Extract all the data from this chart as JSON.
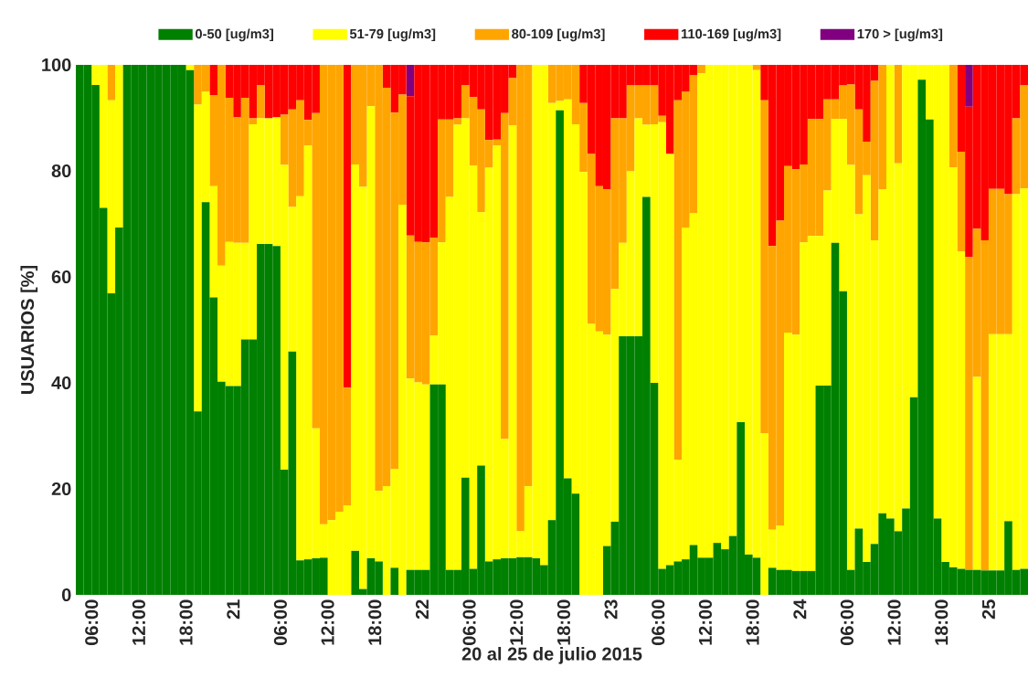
{
  "chart_data": {
    "type": "bar",
    "stacked": true,
    "legend": "top",
    "xlabel": "20 al 25 de julio 2015",
    "ylabel": "USUARIOS [%]",
    "ylim": [
      0,
      100
    ],
    "yticks": [
      0,
      20,
      40,
      60,
      80,
      100
    ],
    "xlim": [
      "2015-07-20T04:00",
      "2015-07-25T05:00"
    ],
    "xticks": [
      {
        "value": "2015-07-20T06:00",
        "label": "06:00"
      },
      {
        "value": "2015-07-20T12:00",
        "label": "12:00"
      },
      {
        "value": "2015-07-20T18:00",
        "label": "18:00"
      },
      {
        "value": "2015-07-21T00:00",
        "label": "21"
      },
      {
        "value": "2015-07-21T06:00",
        "label": "06:00"
      },
      {
        "value": "2015-07-21T12:00",
        "label": "12:00"
      },
      {
        "value": "2015-07-21T18:00",
        "label": "18:00"
      },
      {
        "value": "2015-07-22T00:00",
        "label": "22"
      },
      {
        "value": "2015-07-22T06:00",
        "label": "06:00"
      },
      {
        "value": "2015-07-22T12:00",
        "label": "12:00"
      },
      {
        "value": "2015-07-22T18:00",
        "label": "18:00"
      },
      {
        "value": "2015-07-23T00:00",
        "label": "23"
      },
      {
        "value": "2015-07-23T06:00",
        "label": "06:00"
      },
      {
        "value": "2015-07-23T12:00",
        "label": "12:00"
      },
      {
        "value": "2015-07-23T18:00",
        "label": "18:00"
      },
      {
        "value": "2015-07-24T00:00",
        "label": "24"
      },
      {
        "value": "2015-07-24T06:00",
        "label": "06:00"
      },
      {
        "value": "2015-07-24T12:00",
        "label": "12:00"
      },
      {
        "value": "2015-07-24T18:00",
        "label": "18:00"
      },
      {
        "value": "2015-07-25T00:00",
        "label": "25"
      }
    ],
    "x": [
      "2015-07-20T04:00",
      "2015-07-20T05:00",
      "2015-07-20T06:00",
      "2015-07-20T07:00",
      "2015-07-20T08:00",
      "2015-07-20T09:00",
      "2015-07-20T10:00",
      "2015-07-20T11:00",
      "2015-07-20T12:00",
      "2015-07-20T13:00",
      "2015-07-20T14:00",
      "2015-07-20T15:00",
      "2015-07-20T16:00",
      "2015-07-20T17:00",
      "2015-07-20T18:00",
      "2015-07-20T19:00",
      "2015-07-20T20:00",
      "2015-07-20T21:00",
      "2015-07-20T22:00",
      "2015-07-20T23:00",
      "2015-07-21T00:00",
      "2015-07-21T01:00",
      "2015-07-21T02:00",
      "2015-07-21T03:00",
      "2015-07-21T04:00",
      "2015-07-21T05:00",
      "2015-07-21T06:00",
      "2015-07-21T07:00",
      "2015-07-21T08:00",
      "2015-07-21T09:00",
      "2015-07-21T10:00",
      "2015-07-21T11:00",
      "2015-07-21T12:00",
      "2015-07-21T13:00",
      "2015-07-21T14:00",
      "2015-07-21T15:00",
      "2015-07-21T16:00",
      "2015-07-21T17:00",
      "2015-07-21T18:00",
      "2015-07-21T19:00",
      "2015-07-21T20:00",
      "2015-07-21T21:00",
      "2015-07-21T22:00",
      "2015-07-21T23:00",
      "2015-07-22T00:00",
      "2015-07-22T01:00",
      "2015-07-22T02:00",
      "2015-07-22T03:00",
      "2015-07-22T04:00",
      "2015-07-22T05:00",
      "2015-07-22T06:00",
      "2015-07-22T07:00",
      "2015-07-22T08:00",
      "2015-07-22T09:00",
      "2015-07-22T10:00",
      "2015-07-22T11:00",
      "2015-07-22T12:00",
      "2015-07-22T13:00",
      "2015-07-22T14:00",
      "2015-07-22T15:00",
      "2015-07-22T16:00",
      "2015-07-22T17:00",
      "2015-07-22T18:00",
      "2015-07-22T19:00",
      "2015-07-22T20:00",
      "2015-07-22T21:00",
      "2015-07-22T22:00",
      "2015-07-22T23:00",
      "2015-07-23T00:00",
      "2015-07-23T01:00",
      "2015-07-23T02:00",
      "2015-07-23T03:00",
      "2015-07-23T04:00",
      "2015-07-23T05:00",
      "2015-07-23T06:00",
      "2015-07-23T07:00",
      "2015-07-23T08:00",
      "2015-07-23T09:00",
      "2015-07-23T10:00",
      "2015-07-23T11:00",
      "2015-07-23T12:00",
      "2015-07-23T13:00",
      "2015-07-23T14:00",
      "2015-07-23T15:00",
      "2015-07-23T16:00",
      "2015-07-23T17:00",
      "2015-07-23T18:00",
      "2015-07-23T19:00",
      "2015-07-23T20:00",
      "2015-07-23T21:00",
      "2015-07-23T22:00",
      "2015-07-23T23:00",
      "2015-07-24T00:00",
      "2015-07-24T01:00",
      "2015-07-24T02:00",
      "2015-07-24T03:00",
      "2015-07-24T04:00",
      "2015-07-24T05:00",
      "2015-07-24T06:00",
      "2015-07-24T07:00",
      "2015-07-24T08:00",
      "2015-07-24T09:00",
      "2015-07-24T10:00",
      "2015-07-24T11:00",
      "2015-07-24T12:00",
      "2015-07-24T13:00",
      "2015-07-24T14:00",
      "2015-07-24T15:00",
      "2015-07-24T16:00",
      "2015-07-24T17:00",
      "2015-07-24T18:00",
      "2015-07-24T19:00",
      "2015-07-24T20:00",
      "2015-07-24T21:00",
      "2015-07-24T22:00",
      "2015-07-24T23:00",
      "2015-07-25T00:00",
      "2015-07-25T01:00",
      "2015-07-25T02:00",
      "2015-07-25T03:00",
      "2015-07-25T04:00"
    ],
    "series": [
      {
        "name": "0-50 [ug/m3]",
        "color": "#008000",
        "values": [
          100,
          100,
          96.2,
          73.0,
          56.9,
          69.3,
          100,
          100,
          100,
          100,
          100,
          100,
          100,
          100,
          99.0,
          34.6,
          74.1,
          56.1,
          40.2,
          39.4,
          39.4,
          48.2,
          48.2,
          66.2,
          66.2,
          65.8,
          23.6,
          45.9,
          6.5,
          6.7,
          6.9,
          7.0,
          0,
          0,
          0,
          8.3,
          1.1,
          6.9,
          6.3,
          0,
          5.1,
          0,
          4.7,
          4.7,
          4.7,
          39.7,
          39.7,
          4.7,
          4.7,
          22.1,
          4.9,
          24.4,
          6.3,
          6.7,
          6.9,
          6.9,
          7.1,
          7.1,
          6.9,
          5.6,
          14.1,
          91.4,
          22.0,
          19.1,
          0,
          0,
          0,
          9.2,
          13.8,
          48.8,
          48.8,
          48.8,
          75.1,
          40.0,
          4.9,
          5.6,
          6.3,
          6.7,
          9.4,
          7.0,
          7.0,
          9.8,
          8.6,
          11.1,
          32.6,
          7.6,
          7.0,
          0,
          5.1,
          4.7,
          4.7,
          4.5,
          4.5,
          4.5,
          39.5,
          39.5,
          66.4,
          57.3,
          4.7,
          12.5,
          6.2,
          9.6,
          15.4,
          14.4,
          12.0,
          16.3,
          37.3,
          97.2,
          89.7,
          14.4,
          6.2,
          5.2,
          4.9,
          4.7,
          4.7,
          4.6,
          4.6,
          4.6,
          13.9,
          4.7,
          4.9
        ]
      },
      {
        "name": "51-79 [ug/m3]",
        "color": "#ffff00",
        "values": [
          0,
          0,
          3.8,
          27.0,
          36.4,
          30.7,
          0,
          0,
          0,
          0,
          0,
          0,
          0,
          0,
          1.0,
          57.9,
          20.8,
          21.0,
          21.9,
          27.2,
          27.0,
          18.2,
          40.6,
          23.7,
          23.7,
          24.3,
          57.5,
          27.3,
          68.7,
          78.1,
          24.5,
          6.3,
          14.1,
          15.7,
          16.9,
          72.9,
          75.9,
          85.3,
          13.3,
          20.5,
          18.6,
          73.6,
          36.1,
          35.4,
          35.0,
          9.2,
          26.8,
          70.4,
          84.0,
          67.8,
          76.1,
          47.8,
          74.3,
          78.1,
          22.5,
          81.7,
          4.9,
          13.4,
          93.1,
          94.4,
          78.7,
          1.8,
          71.5,
          69.7,
          79.8,
          51.1,
          49.7,
          39.9,
          43.9,
          17.6,
          31.1,
          41.1,
          13.6,
          48.8,
          84.3,
          77.6,
          19.2,
          62.6,
          62.6,
          91.4,
          93.0,
          90.2,
          91.4,
          88.9,
          67.4,
          92.4,
          92.0,
          30.5,
          7.2,
          8.4,
          44.8,
          44.6,
          62.0,
          63.2,
          28.2,
          36.8,
          23.4,
          32.5,
          76.4,
          59.3,
          73.0,
          57.3,
          61.1,
          85.6,
          69.4,
          83.7,
          62.7,
          2.8,
          10.3,
          85.6,
          93.8,
          75.5,
          59.9,
          0,
          36.4,
          0,
          44.6,
          44.6,
          35.3,
          70.9,
          71.8
        ]
      },
      {
        "name": "80-109 [ug/m3]",
        "color": "#ffa500",
        "values": [
          0,
          0,
          0,
          0,
          6.7,
          0,
          0,
          0,
          0,
          0,
          0,
          0,
          0,
          0,
          0,
          7.5,
          5.1,
          17.2,
          37.9,
          27.2,
          23.7,
          27.4,
          1.1,
          6.3,
          0,
          0,
          9.5,
          18.4,
          18.1,
          4.8,
          59.5,
          86.7,
          85.9,
          84.3,
          22.2,
          18.8,
          23.0,
          7.8,
          80.4,
          75.2,
          67.3,
          20.8,
          27.0,
          26.5,
          26.8,
          18.5,
          23.2,
          14.6,
          1.2,
          6.3,
          12.9,
          19.4,
          5.2,
          1.1,
          61.5,
          8.9,
          88.0,
          79.5,
          0,
          0,
          7.2,
          6.8,
          6.5,
          11.2,
          13.0,
          32.1,
          27.4,
          27.4,
          32.2,
          23.5,
          16.2,
          6.2,
          7.4,
          7.3,
          1.2,
          0,
          67.8,
          25.6,
          26.1,
          1.6,
          0,
          0,
          0,
          0,
          0,
          0,
          1.0,
          62.8,
          53.5,
          57.5,
          31.4,
          31.2,
          14.7,
          22.1,
          22.1,
          17.2,
          3.7,
          6.3,
          15.2,
          19.8,
          6.3,
          30.1,
          23.5,
          0,
          18.6,
          0,
          0,
          0,
          0,
          0,
          0,
          19.3,
          18.8,
          59.0,
          28.0,
          62.3,
          27.4,
          27.4,
          26.4,
          14.3,
          19.5
        ]
      },
      {
        "name": "110-169 [ug/m3]",
        "color": "#ff0000",
        "values": [
          0,
          0,
          0,
          0,
          0,
          0,
          0,
          0,
          0,
          0,
          0,
          0,
          0,
          0,
          0,
          0,
          0,
          5.7,
          0,
          6.2,
          9.9,
          6.2,
          10.1,
          3.8,
          10.1,
          9.9,
          9.4,
          8.4,
          6.7,
          10.4,
          9.1,
          0,
          0,
          0,
          60.9,
          0,
          0,
          0,
          0,
          4.3,
          9.0,
          5.6,
          26.3,
          33.4,
          33.5,
          32.6,
          10.3,
          10.3,
          10.1,
          3.8,
          6.1,
          8.4,
          14.2,
          14.1,
          9.1,
          2.5,
          0,
          0,
          0,
          0,
          0,
          0,
          0,
          0,
          7.2,
          16.8,
          22.9,
          23.5,
          10.1,
          10.1,
          3.9,
          3.9,
          3.9,
          3.9,
          9.6,
          16.8,
          6.7,
          5.1,
          1.9,
          0,
          0,
          0,
          0,
          0,
          0,
          0,
          0,
          6.7,
          34.2,
          29.4,
          19.1,
          19.7,
          18.8,
          10.2,
          10.2,
          6.5,
          6.5,
          3.9,
          3.7,
          8.4,
          14.5,
          3.0,
          0,
          0,
          0,
          0,
          0,
          0,
          0,
          0,
          0,
          0,
          16.4,
          28.4,
          30.9,
          33.1,
          23.4,
          23.4,
          24.4,
          10.1,
          3.8
        ]
      },
      {
        "name": "170 > [ug/m3]",
        "color": "#800080",
        "values": [
          0,
          0,
          0,
          0,
          0,
          0,
          0,
          0,
          0,
          0,
          0,
          0,
          0,
          0,
          0,
          0,
          0,
          0,
          0,
          0,
          0,
          0,
          0,
          0,
          0,
          0,
          0,
          0,
          0,
          0,
          0,
          0,
          0,
          0,
          0,
          0,
          0,
          0,
          0,
          0,
          0,
          0,
          5.9,
          0,
          0,
          0,
          0,
          0,
          0,
          0,
          0,
          0,
          0,
          0,
          0,
          0,
          0,
          0,
          0,
          0,
          0,
          0,
          0,
          0,
          0,
          0,
          0,
          0,
          0,
          0,
          0,
          0,
          0,
          0,
          0,
          0,
          0,
          0,
          0,
          0,
          0,
          0,
          0,
          0,
          0,
          0,
          0,
          0,
          0,
          0,
          0,
          0,
          0,
          0,
          0,
          0,
          0,
          0,
          0,
          0,
          0,
          0,
          0,
          0,
          0,
          0,
          0,
          0,
          0,
          0,
          0,
          0,
          0,
          7.9,
          0,
          0,
          0,
          0,
          0,
          0,
          0
        ]
      }
    ]
  }
}
